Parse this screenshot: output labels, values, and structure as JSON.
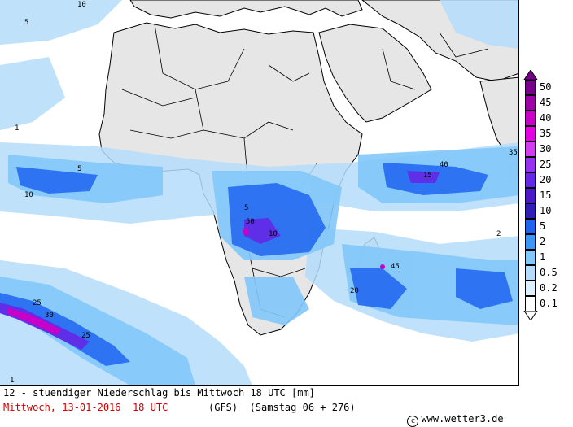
{
  "map": {
    "caption": "12 - stuendiger Niederschlag bis Mittwoch 18 UTC [mm]",
    "valid_date": "Mittwoch, 13-01-2016  18 UTC",
    "model_run": "(GFS)  (Samstag 06 + 276)",
    "credit_icon": "copyright-icon",
    "credit": "www.wetter3.de",
    "land_color": "#e6e6e6",
    "sea_color": "#ffffff",
    "border_color": "#000000"
  },
  "legend": {
    "levels": [
      {
        "label": "50",
        "color": "#78008c"
      },
      {
        "label": "45",
        "color": "#a000a8"
      },
      {
        "label": "40",
        "color": "#c800c8"
      },
      {
        "label": "35",
        "color": "#e600e6"
      },
      {
        "label": "30",
        "color": "#d23cf0"
      },
      {
        "label": "25",
        "color": "#9632f0"
      },
      {
        "label": "20",
        "color": "#6428e6"
      },
      {
        "label": "15",
        "color": "#4b19c8"
      },
      {
        "label": "10",
        "color": "#321eb4"
      },
      {
        "label": "5",
        "color": "#1e64f0"
      },
      {
        "label": "2",
        "color": "#3c96f5"
      },
      {
        "label": "1",
        "color": "#82c8fa"
      },
      {
        "label": "0.5",
        "color": "#b4dcfa"
      },
      {
        "label": "0.2",
        "color": "#dcf0ff"
      },
      {
        "label": "0.1",
        "color": "#ffffff"
      }
    ]
  },
  "map_labels": [
    "10",
    "5",
    "1",
    "10",
    "5",
    "25",
    "1",
    "5",
    "10",
    "15",
    "20",
    "25",
    "30",
    "35",
    "40",
    "45",
    "50",
    "2"
  ]
}
